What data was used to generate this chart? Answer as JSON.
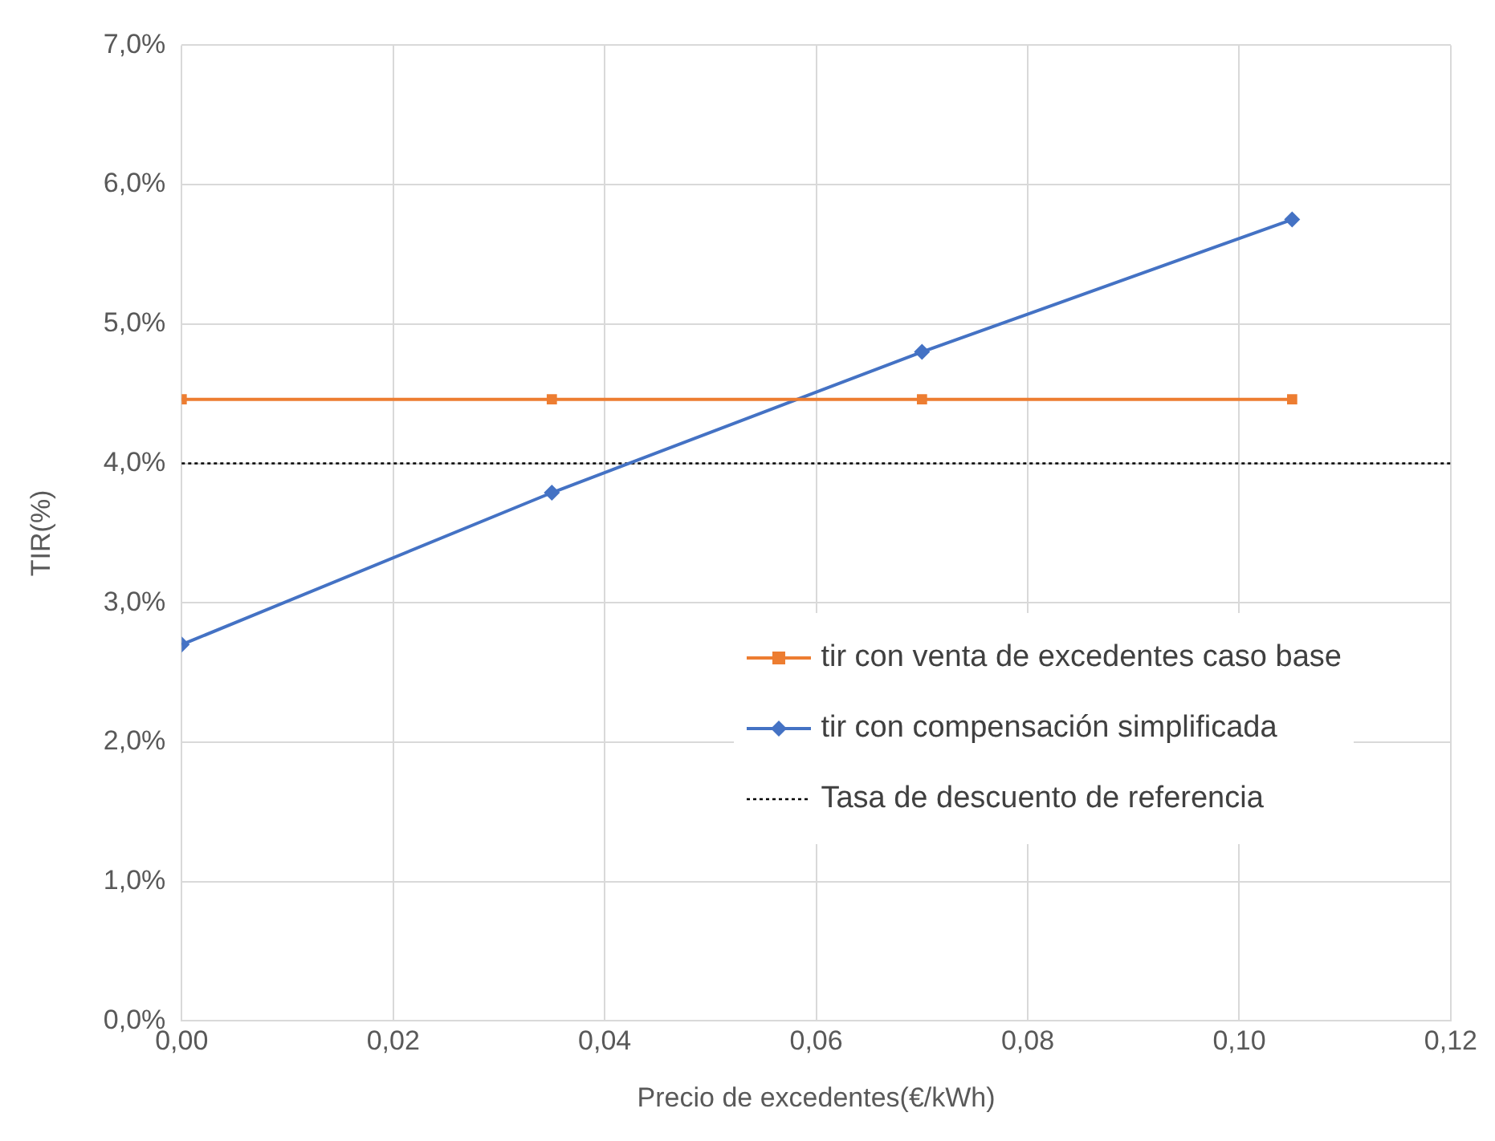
{
  "chart_data": {
    "type": "line",
    "xlabel": "Precio de excedentes(€/kWh)",
    "ylabel": "TIR(%)",
    "x": [
      0,
      0.035,
      0.07,
      0.105
    ],
    "series": [
      {
        "name": "tir con venta de excedentes caso base",
        "color": "#ed7d31",
        "marker": "square",
        "values": [
          4.46,
          4.46,
          4.46,
          4.46
        ]
      },
      {
        "name": "tir con compensación simplificada",
        "color": "#4472c4",
        "marker": "diamond",
        "values": [
          2.7,
          3.79,
          4.8,
          5.75
        ]
      }
    ],
    "ref_lines": [
      {
        "axis": "y",
        "value": 4.0,
        "label": "Tasa de descuento de referencia",
        "color": "#000000",
        "line_style": "dotted"
      }
    ],
    "xlim": [
      0,
      0.12
    ],
    "xticks": [
      {
        "value": 0,
        "label": "0,00"
      },
      {
        "value": 0.02,
        "label": "0,02"
      },
      {
        "value": 0.04,
        "label": "0,04"
      },
      {
        "value": 0.06,
        "label": "0,06"
      },
      {
        "value": 0.08,
        "label": "0,08"
      },
      {
        "value": 0.1,
        "label": "0,10"
      },
      {
        "value": 0.12,
        "label": "0,12"
      }
    ],
    "ylim": [
      0,
      7
    ],
    "yticks": [
      {
        "value": 0,
        "label": "0,0%"
      },
      {
        "value": 1,
        "label": "1,0%"
      },
      {
        "value": 2,
        "label": "2,0%"
      },
      {
        "value": 3,
        "label": "3,0%"
      },
      {
        "value": 4,
        "label": "4,0%"
      },
      {
        "value": 5,
        "label": "5,0%"
      },
      {
        "value": 6,
        "label": "6,0%"
      },
      {
        "value": 7,
        "label": "7,0%"
      }
    ],
    "grid": true,
    "legend": "bottom right",
    "line_style": "solid"
  }
}
